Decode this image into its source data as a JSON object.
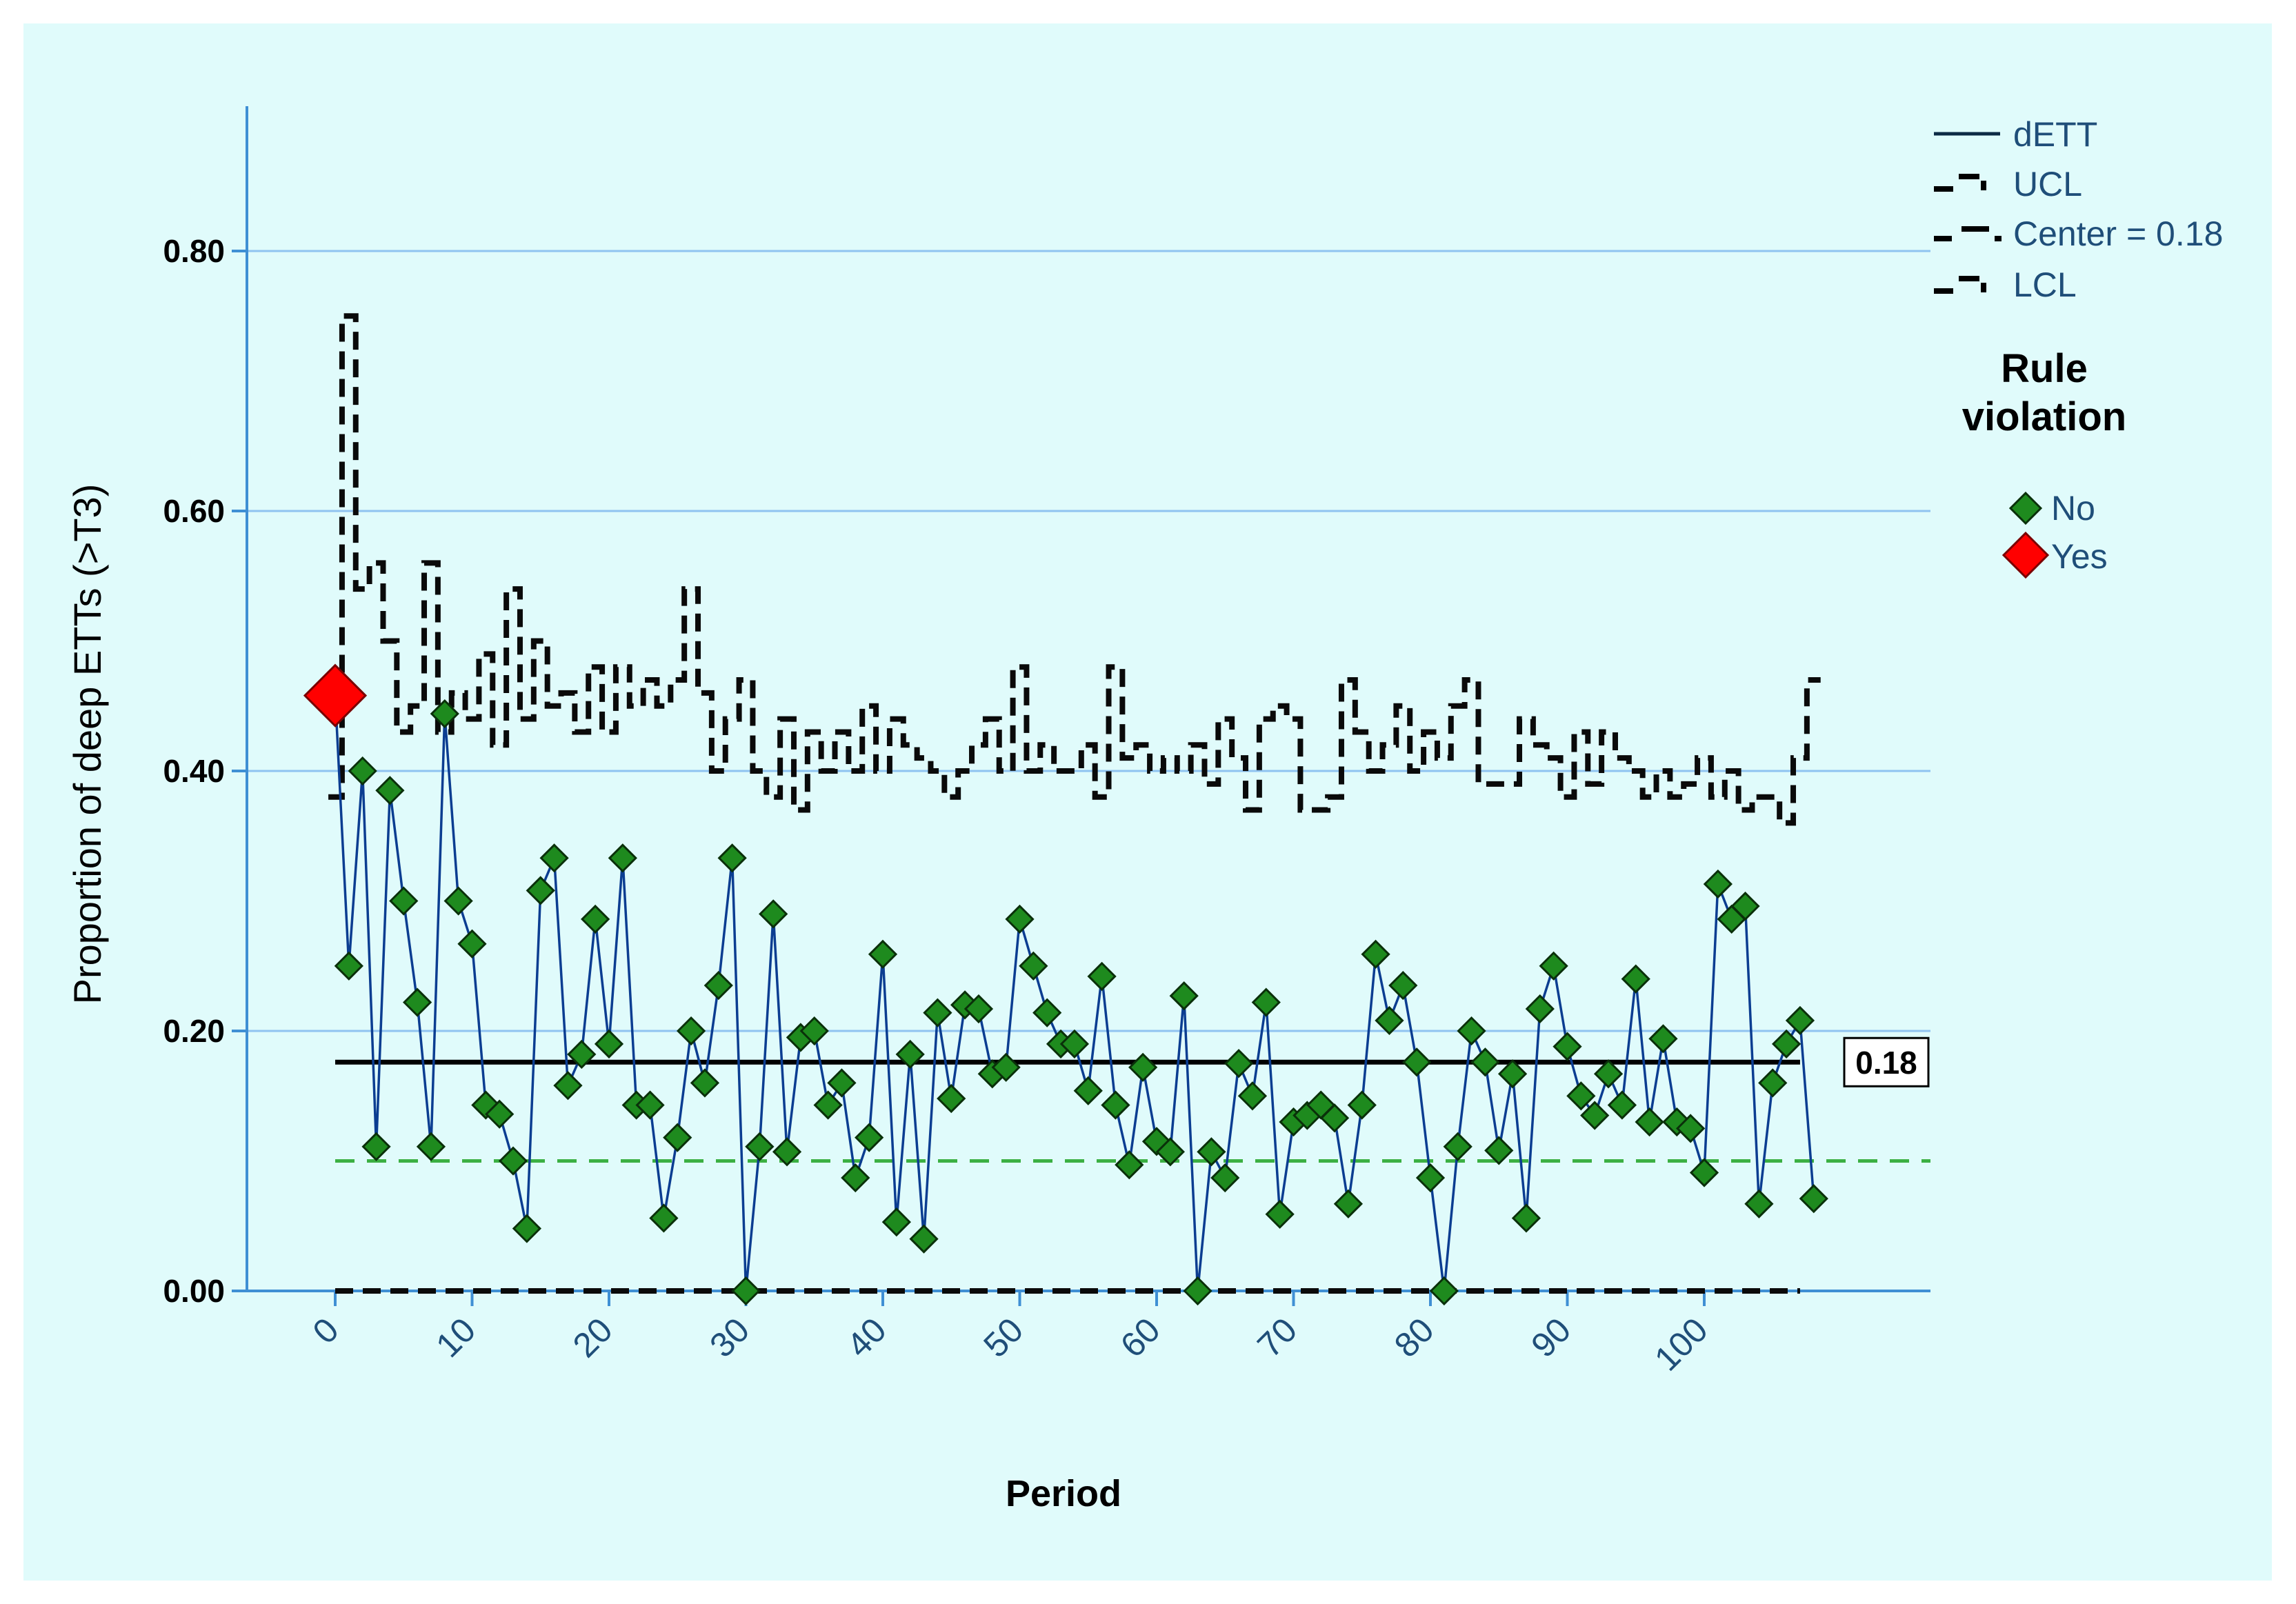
{
  "chart_data": {
    "type": "line",
    "ylabel": "Proportion of deep ETTs (>T3)",
    "xlabel": "Period",
    "ylim": [
      0,
      0.88
    ],
    "xlim": [
      -6,
      114
    ],
    "y_ticks": [
      0.0,
      0.2,
      0.4,
      0.6,
      0.8
    ],
    "y_tick_labels": [
      "0.00",
      "0.20",
      "0.40",
      "0.60",
      "0.80"
    ],
    "x_ticks": [
      0,
      10,
      20,
      30,
      40,
      50,
      60,
      70,
      80,
      90,
      100
    ],
    "x_tick_labels": [
      "0",
      "10",
      "20",
      "30",
      "40",
      "50",
      "60",
      "70",
      "80",
      "90",
      "100"
    ],
    "grid": true,
    "center_value": 0.176,
    "center_label": "0.18",
    "reference_line": 0.1,
    "legend": {
      "position": "top-right",
      "items": [
        "dETT",
        "UCL",
        "Center = 0.18",
        "LCL"
      ],
      "rule_title_line1": "Rule",
      "rule_title_line2": "violation",
      "rule_no": "No",
      "rule_yes": "Yes"
    },
    "series": [
      {
        "name": "dETT",
        "x_start": 0,
        "values": [
          0.458,
          0.25,
          0.4,
          0.111,
          0.385,
          0.3,
          0.222,
          0.111,
          0.444,
          0.3,
          0.267,
          0.143,
          0.136,
          0.1,
          0.048,
          0.308,
          0.333,
          0.158,
          0.182,
          0.286,
          0.19,
          0.333,
          0.143,
          0.143,
          0.056,
          0.118,
          0.2,
          0.16,
          0.235,
          0.333,
          0.0,
          0.111,
          0.29,
          0.107,
          0.195,
          0.2,
          0.143,
          0.16,
          0.087,
          0.118,
          0.259,
          0.053,
          0.182,
          0.04,
          0.214,
          0.148,
          0.22,
          0.217,
          0.167,
          0.172,
          0.286,
          0.25,
          0.214,
          0.19,
          0.19,
          0.154,
          0.242,
          0.143,
          0.097,
          0.172,
          0.115,
          0.107,
          0.227,
          0.0,
          0.107,
          0.087,
          0.175,
          0.15,
          0.222,
          0.059,
          0.13,
          0.135,
          0.143,
          0.133,
          0.067,
          0.143,
          0.259,
          0.208,
          0.235,
          0.176,
          0.087,
          0.0,
          0.111,
          0.2,
          0.176,
          0.108,
          0.167,
          0.056,
          0.217,
          0.25,
          0.188,
          0.15,
          0.135,
          0.167,
          0.143,
          0.24,
          0.13,
          0.194,
          0.13,
          0.125,
          0.091,
          0.313,
          0.286,
          0.296,
          0.067,
          0.16,
          0.19,
          0.208,
          0.071
        ],
        "violations": [
          0
        ]
      },
      {
        "name": "UCL",
        "x_start": 0,
        "values": [
          0.38,
          0.75,
          0.54,
          0.56,
          0.5,
          0.43,
          0.45,
          0.56,
          0.43,
          0.46,
          0.44,
          0.49,
          0.42,
          0.54,
          0.44,
          0.5,
          0.45,
          0.46,
          0.43,
          0.48,
          0.43,
          0.48,
          0.45,
          0.47,
          0.45,
          0.47,
          0.54,
          0.46,
          0.4,
          0.44,
          0.47,
          0.4,
          0.38,
          0.44,
          0.37,
          0.43,
          0.4,
          0.43,
          0.4,
          0.45,
          0.4,
          0.44,
          0.42,
          0.41,
          0.4,
          0.38,
          0.4,
          0.42,
          0.44,
          0.4,
          0.48,
          0.4,
          0.42,
          0.4,
          0.4,
          0.42,
          0.38,
          0.48,
          0.41,
          0.42,
          0.4,
          0.41,
          0.4,
          0.42,
          0.39,
          0.44,
          0.41,
          0.37,
          0.44,
          0.45,
          0.44,
          0.37,
          0.37,
          0.38,
          0.47,
          0.43,
          0.4,
          0.42,
          0.45,
          0.4,
          0.43,
          0.41,
          0.45,
          0.47,
          0.39,
          0.39,
          0.39,
          0.44,
          0.42,
          0.41,
          0.38,
          0.43,
          0.39,
          0.43,
          0.41,
          0.4,
          0.38,
          0.4,
          0.38,
          0.39,
          0.41,
          0.38,
          0.4,
          0.37,
          0.38,
          0.38,
          0.36,
          0.41,
          0.47
        ]
      },
      {
        "name": "LCL",
        "x_start": 0,
        "x_end": 107,
        "value": 0.0
      }
    ]
  }
}
